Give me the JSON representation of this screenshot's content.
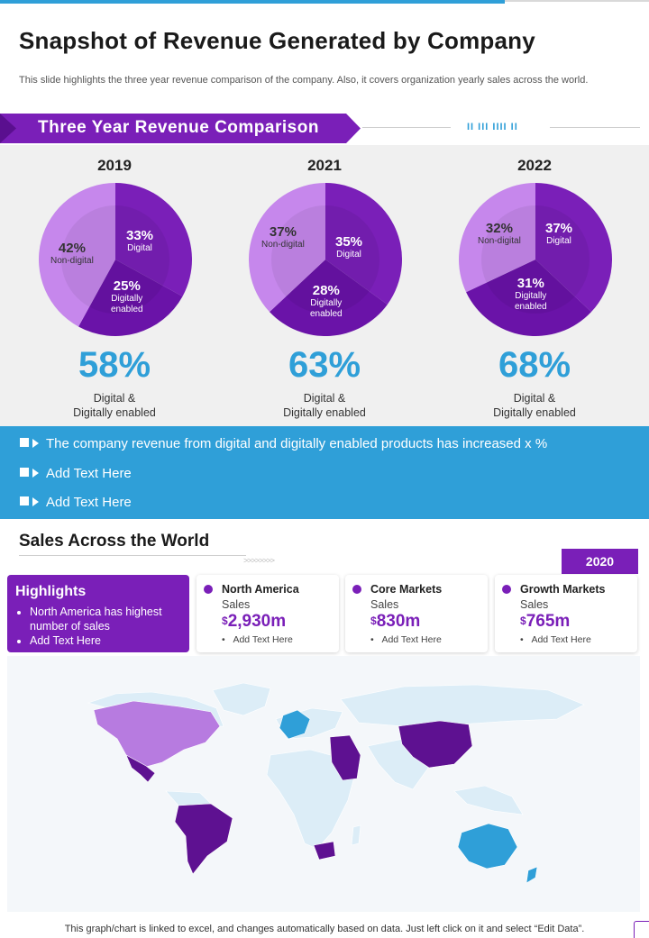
{
  "title": "Snapshot of Revenue Generated by Company",
  "subtitle": "This slide highlights the three year revenue comparison of the company. Also, it covers organization yearly sales across the world.",
  "section1": {
    "banner": "Three Year Revenue Comparison",
    "decor": "II III IIII II"
  },
  "chart_data": {
    "type": "pie",
    "title": "Three Year Revenue Comparison",
    "series_labels": [
      "Digital",
      "Digitally enabled",
      "Non-digital"
    ],
    "pies": [
      {
        "year": "2019",
        "values": [
          33,
          25,
          42
        ],
        "summary": "58%",
        "caption_l1": "Digital &",
        "caption_l2": "Digitally enabled"
      },
      {
        "year": "2021",
        "values": [
          35,
          28,
          37
        ],
        "summary": "63%",
        "caption_l1": "Digital &",
        "caption_l2": "Digitally enabled"
      },
      {
        "year": "2022",
        "values": [
          37,
          31,
          32
        ],
        "summary": "68%",
        "caption_l1": "Digital &",
        "caption_l2": "Digitally enabled"
      }
    ],
    "colors": [
      "#7a1fb8",
      "#6a13a8",
      "#c687ec"
    ]
  },
  "pie_text": {
    "p0": {
      "digital_pct": "33%",
      "digital_txt": "Digital",
      "enabled_pct": "25%",
      "enabled_txt_1": "Digitally",
      "enabled_txt_2": "enabled",
      "non_pct": "42%",
      "non_txt": "Non-digital"
    },
    "p1": {
      "digital_pct": "35%",
      "digital_txt": "Digital",
      "enabled_pct": "28%",
      "enabled_txt_1": "Digitally",
      "enabled_txt_2": "enabled",
      "non_pct": "37%",
      "non_txt": "Non-digital"
    },
    "p2": {
      "digital_pct": "37%",
      "digital_txt": "Digital",
      "enabled_pct": "31%",
      "enabled_txt_1": "Digitally",
      "enabled_txt_2": "enabled",
      "non_pct": "32%",
      "non_txt": "Non-digital"
    }
  },
  "bullets": [
    "The company revenue from digital and digitally enabled products has increased x %",
    "Add Text Here",
    "Add Text Here"
  ],
  "sales": {
    "title": "Sales Across the World",
    "chevrons": ">>>>>>>>",
    "year": "2020",
    "highlights": {
      "heading": "Highlights",
      "items": [
        "North America has highest number of sales",
        "Add Text Here"
      ]
    },
    "cards": [
      {
        "name": "North America",
        "label": "Sales",
        "currency": "$",
        "value": "2,930m",
        "note": "Add Text Here"
      },
      {
        "name": "Core Markets",
        "label": "Sales",
        "currency": "$",
        "value": "830m",
        "note": "Add Text Here"
      },
      {
        "name": "Growth Markets",
        "label": "Sales",
        "currency": "$",
        "value": "765m",
        "note": "Add Text Here"
      }
    ],
    "map_colors": {
      "base": "#dcedf7",
      "north_america": "#b77be0",
      "core": "#5e1191",
      "growth": "#2f9fd8"
    }
  },
  "footer": "This graph/chart is linked to excel, and changes automatically based on data. Just left click on it and select “Edit Data”."
}
